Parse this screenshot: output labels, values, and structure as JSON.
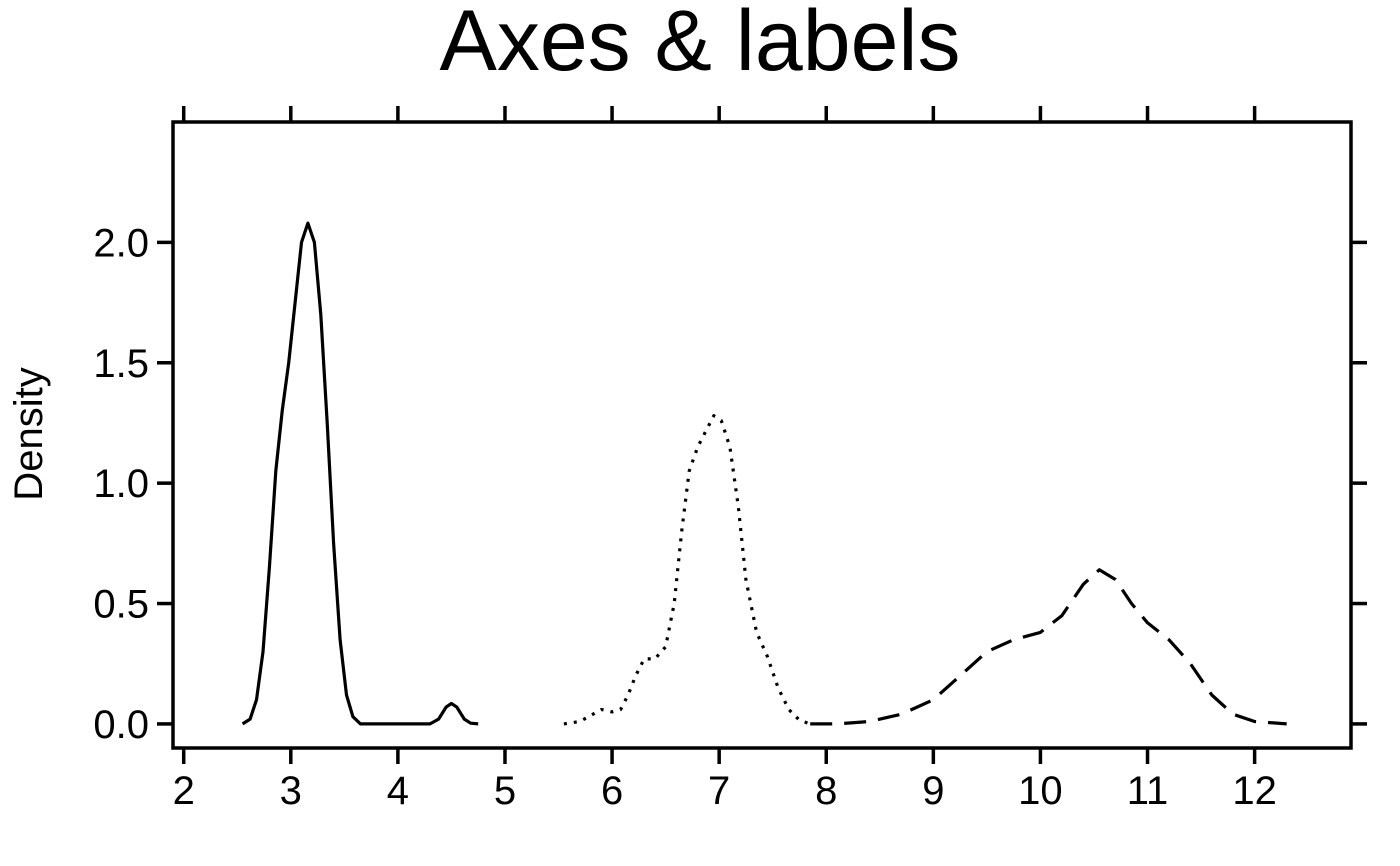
{
  "chart_data": {
    "type": "line",
    "title": "Axes & labels",
    "xlabel": "",
    "ylabel": "Density",
    "xlim": [
      1.9,
      12.9
    ],
    "ylim": [
      -0.1,
      2.5
    ],
    "x_ticks": [
      2,
      3,
      4,
      5,
      6,
      7,
      8,
      9,
      10,
      11,
      12
    ],
    "x_tick_labels": [
      "2",
      "3",
      "4",
      "5",
      "6",
      "7",
      "8",
      "9",
      "10",
      "11",
      "12"
    ],
    "y_ticks": [
      0.0,
      0.5,
      1.0,
      1.5,
      2.0
    ],
    "y_tick_labels": [
      "0.0",
      "0.5",
      "1.0",
      "1.5",
      "2.0"
    ],
    "top_ticks": [
      2,
      3,
      4,
      5,
      6,
      7,
      8,
      9,
      10,
      11,
      12
    ],
    "right_ticks": [
      0.0,
      0.5,
      1.0,
      1.5,
      2.0
    ],
    "grid": false,
    "legend": "none",
    "series": [
      {
        "style": "solid",
        "color": "#000000",
        "points": [
          [
            2.55,
            0.0
          ],
          [
            2.62,
            0.02
          ],
          [
            2.68,
            0.1
          ],
          [
            2.74,
            0.3
          ],
          [
            2.8,
            0.65
          ],
          [
            2.86,
            1.05
          ],
          [
            2.92,
            1.3
          ],
          [
            2.98,
            1.5
          ],
          [
            3.04,
            1.75
          ],
          [
            3.1,
            2.0
          ],
          [
            3.16,
            2.08
          ],
          [
            3.22,
            2.0
          ],
          [
            3.28,
            1.7
          ],
          [
            3.34,
            1.25
          ],
          [
            3.4,
            0.75
          ],
          [
            3.46,
            0.35
          ],
          [
            3.52,
            0.12
          ],
          [
            3.58,
            0.03
          ],
          [
            3.65,
            0.0
          ],
          [
            3.8,
            0.0
          ],
          [
            4.0,
            0.0
          ],
          [
            4.2,
            0.0
          ],
          [
            4.3,
            0.0
          ],
          [
            4.38,
            0.02
          ],
          [
            4.45,
            0.07
          ],
          [
            4.5,
            0.085
          ],
          [
            4.55,
            0.07
          ],
          [
            4.62,
            0.02
          ],
          [
            4.68,
            0.003
          ],
          [
            4.75,
            0.0
          ]
        ]
      },
      {
        "style": "dotted",
        "color": "#000000",
        "points": [
          [
            5.55,
            0.0
          ],
          [
            5.7,
            0.01
          ],
          [
            5.8,
            0.035
          ],
          [
            5.9,
            0.06
          ],
          [
            6.0,
            0.05
          ],
          [
            6.08,
            0.06
          ],
          [
            6.15,
            0.12
          ],
          [
            6.22,
            0.2
          ],
          [
            6.3,
            0.27
          ],
          [
            6.4,
            0.27
          ],
          [
            6.5,
            0.32
          ],
          [
            6.58,
            0.5
          ],
          [
            6.65,
            0.8
          ],
          [
            6.72,
            1.05
          ],
          [
            6.8,
            1.15
          ],
          [
            6.88,
            1.22
          ],
          [
            6.95,
            1.28
          ],
          [
            7.02,
            1.26
          ],
          [
            7.1,
            1.15
          ],
          [
            7.18,
            0.9
          ],
          [
            7.25,
            0.6
          ],
          [
            7.35,
            0.38
          ],
          [
            7.45,
            0.28
          ],
          [
            7.55,
            0.15
          ],
          [
            7.65,
            0.06
          ],
          [
            7.75,
            0.015
          ],
          [
            7.85,
            0.0
          ]
        ]
      },
      {
        "style": "dashed",
        "color": "#000000",
        "points": [
          [
            7.85,
            0.0
          ],
          [
            8.1,
            0.0
          ],
          [
            8.4,
            0.01
          ],
          [
            8.7,
            0.04
          ],
          [
            9.0,
            0.1
          ],
          [
            9.25,
            0.2
          ],
          [
            9.5,
            0.3
          ],
          [
            9.75,
            0.35
          ],
          [
            10.0,
            0.38
          ],
          [
            10.2,
            0.45
          ],
          [
            10.4,
            0.58
          ],
          [
            10.55,
            0.64
          ],
          [
            10.7,
            0.6
          ],
          [
            10.85,
            0.5
          ],
          [
            11.0,
            0.42
          ],
          [
            11.2,
            0.35
          ],
          [
            11.4,
            0.25
          ],
          [
            11.6,
            0.12
          ],
          [
            11.8,
            0.04
          ],
          [
            12.0,
            0.01
          ],
          [
            12.3,
            0.0
          ]
        ]
      }
    ]
  }
}
